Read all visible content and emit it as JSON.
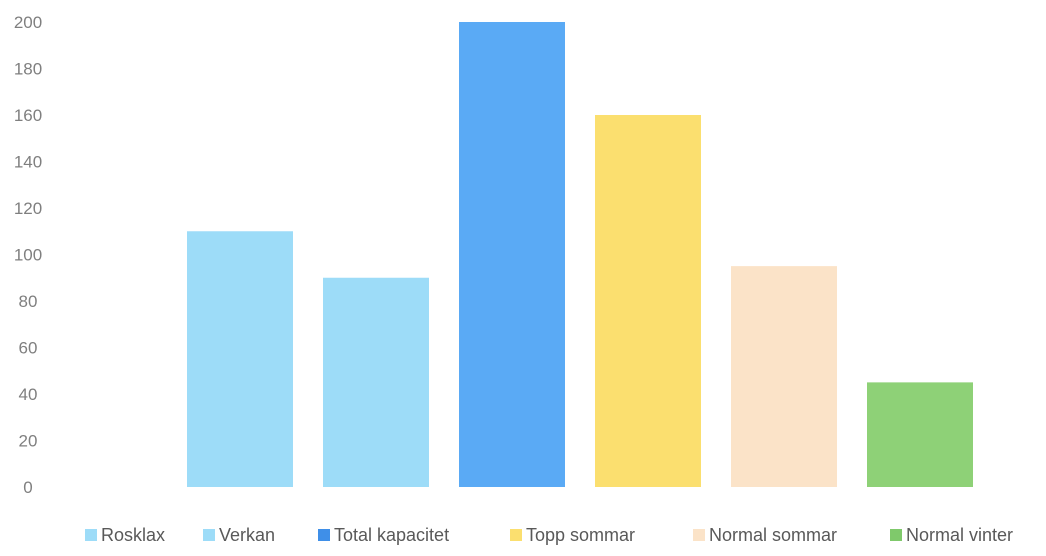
{
  "chart_data": {
    "type": "bar",
    "ylim": [
      0,
      200
    ],
    "yticks": [
      0,
      20,
      40,
      60,
      80,
      100,
      120,
      140,
      160,
      180,
      200
    ],
    "grid": false,
    "legend_position": "bottom",
    "series": [
      {
        "name": "Rosklax",
        "value": 0,
        "color": "#9ddcf8"
      },
      {
        "name": "Verkan",
        "value": 110,
        "color": "#9ddcf8"
      },
      {
        "name": "Total kapacitet",
        "value": 90,
        "color": "#9ddcf8"
      },
      {
        "name": "Topp sommar",
        "value": 200,
        "color": "#5aaaf5"
      },
      {
        "name": "Normal sommar",
        "value": 160,
        "color": "#fbdf6f"
      },
      {
        "name": "Normal vinter",
        "value": 95,
        "color": "#fbe3c8"
      },
      {
        "name": "",
        "value": 45,
        "color": "#8ed177"
      }
    ],
    "legend": [
      {
        "name": "Rosklax",
        "color": "#9ddcf8"
      },
      {
        "name": "Verkan",
        "color": "#9ddcf8"
      },
      {
        "name": "Total kapacitet",
        "color": "#3f8fe8"
      },
      {
        "name": "Topp sommar",
        "color": "#fbdf6f"
      },
      {
        "name": "Normal sommar",
        "color": "#fbe3c8"
      },
      {
        "name": "Normal vinter",
        "color": "#7fc96b"
      }
    ]
  }
}
